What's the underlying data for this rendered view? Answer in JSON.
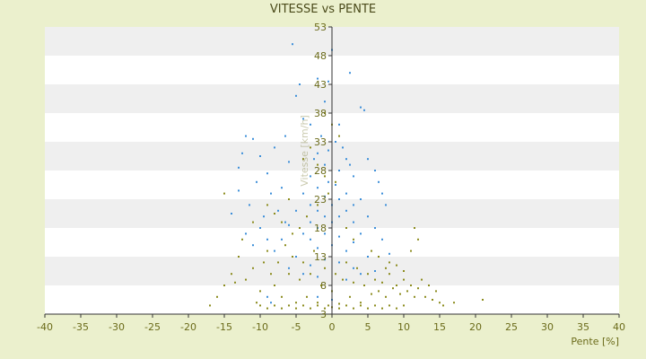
{
  "chart_data": {
    "type": "scatter",
    "title": "VITESSE vs PENTE",
    "xlabel": "Pente [%]",
    "ylabel": "Vitesse [km/h]",
    "xlim": [
      -40,
      40
    ],
    "ylim": [
      3,
      53
    ],
    "x_ticks": [
      -40,
      -35,
      -30,
      -25,
      -20,
      -15,
      -10,
      -5,
      0,
      5,
      10,
      15,
      20,
      25,
      30,
      35,
      40
    ],
    "y_ticks": [
      3,
      8,
      13,
      18,
      23,
      28,
      33,
      38,
      43,
      48,
      53
    ],
    "grid": "horizontal alternating bands",
    "colors": {
      "background": "#ebf0cd",
      "plot_light": "#ffffff",
      "plot_band": "#efefef",
      "axis_text": "#6b6b1a",
      "title": "#4a4a1a"
    },
    "series": [
      {
        "color": "#3d8fd9",
        "summary": "dense cloud centered near x=0, y=18–28, spanning x -13..8 and y 5..50",
        "points": [
          [
            -5.5,
            50
          ],
          [
            0,
            49
          ],
          [
            2.5,
            45
          ],
          [
            -2,
            44
          ],
          [
            -0.5,
            43.5
          ],
          [
            -4.5,
            43
          ],
          [
            -5,
            41
          ],
          [
            -1,
            40
          ],
          [
            4,
            39
          ],
          [
            4.5,
            38.5
          ],
          [
            -4,
            37
          ],
          [
            -3,
            36
          ],
          [
            1,
            36
          ],
          [
            -12,
            34
          ],
          [
            -11,
            33.5
          ],
          [
            -8,
            32
          ],
          [
            -12.5,
            31
          ],
          [
            -10,
            30.5
          ],
          [
            -6,
            29.5
          ],
          [
            -13,
            28.5
          ],
          [
            -9,
            27.5
          ],
          [
            -2,
            31
          ],
          [
            2,
            30
          ],
          [
            -1,
            29
          ],
          [
            1,
            28
          ],
          [
            -3,
            27
          ],
          [
            3,
            27
          ],
          [
            -0.5,
            26
          ],
          [
            0.5,
            25.5
          ],
          [
            -2,
            25
          ],
          [
            2,
            24
          ],
          [
            -4,
            24
          ],
          [
            4,
            23
          ],
          [
            -1,
            23.5
          ],
          [
            1,
            23
          ],
          [
            -3,
            22
          ],
          [
            3,
            22
          ],
          [
            0,
            22
          ],
          [
            -2,
            21
          ],
          [
            2,
            21
          ],
          [
            -5,
            21
          ],
          [
            5,
            20
          ],
          [
            -1,
            20
          ],
          [
            1,
            20
          ],
          [
            -3,
            19
          ],
          [
            3,
            19
          ],
          [
            0,
            19
          ],
          [
            -6,
            18.5
          ],
          [
            6,
            18
          ],
          [
            -2,
            18
          ],
          [
            2,
            18
          ],
          [
            -4,
            17
          ],
          [
            4,
            17
          ],
          [
            -1,
            17
          ],
          [
            1,
            16.5
          ],
          [
            -7,
            16
          ],
          [
            7,
            16
          ],
          [
            -3,
            16
          ],
          [
            3,
            15.5
          ],
          [
            0,
            15
          ],
          [
            -2,
            14.5
          ],
          [
            2,
            14
          ],
          [
            -8,
            14
          ],
          [
            8,
            13.5
          ],
          [
            -5,
            13
          ],
          [
            5,
            13
          ],
          [
            -1,
            12.5
          ],
          [
            1,
            12
          ],
          [
            -3,
            11.5
          ],
          [
            3,
            11
          ],
          [
            -6,
            11
          ],
          [
            6,
            10.5
          ],
          [
            -4,
            10
          ],
          [
            4,
            10
          ],
          [
            -2,
            9.5
          ],
          [
            2,
            9
          ],
          [
            -10,
            18
          ],
          [
            -9,
            16
          ],
          [
            -11,
            15
          ],
          [
            -12,
            17
          ],
          [
            -9.5,
            20
          ],
          [
            -11.5,
            22
          ],
          [
            -8.5,
            24
          ],
          [
            -10.5,
            26
          ],
          [
            -13,
            24.5
          ],
          [
            6.5,
            26
          ],
          [
            7,
            24
          ],
          [
            7.5,
            22
          ],
          [
            6,
            28
          ],
          [
            5,
            30
          ],
          [
            -14,
            20.5
          ],
          [
            -6.5,
            34
          ],
          [
            -7,
            25
          ],
          [
            -7.5,
            21
          ],
          [
            -6.5,
            19
          ],
          [
            -1.5,
            34
          ],
          [
            0.5,
            33
          ],
          [
            -0.5,
            31.5
          ],
          [
            1.5,
            32
          ],
          [
            -2.5,
            30
          ],
          [
            2.5,
            29
          ],
          [
            -9,
            6
          ],
          [
            -8.5,
            5
          ],
          [
            -2,
            6
          ],
          [
            0,
            5.5
          ]
        ]
      },
      {
        "color": "#8c8c1e",
        "summary": "broader cloud of low-speed points, x -17..21, y 3..38, densest near y 4–9",
        "points": [
          [
            -17,
            4.5
          ],
          [
            -16,
            6
          ],
          [
            -15,
            8
          ],
          [
            -14,
            10
          ],
          [
            -15,
            24
          ],
          [
            -13,
            13
          ],
          [
            -13.5,
            8.5
          ],
          [
            -12,
            9
          ],
          [
            -11,
            11
          ],
          [
            -10.5,
            5
          ],
          [
            -10,
            7
          ],
          [
            -9.5,
            12
          ],
          [
            -9,
            14
          ],
          [
            -8,
            8
          ],
          [
            -8.5,
            10
          ],
          [
            -7,
            6
          ],
          [
            -7.5,
            12
          ],
          [
            -6,
            10
          ],
          [
            -6.5,
            15
          ],
          [
            -5,
            5
          ],
          [
            -5.5,
            13
          ],
          [
            -4.5,
            9
          ],
          [
            -4,
            12
          ],
          [
            -3.5,
            6
          ],
          [
            -3,
            10
          ],
          [
            -2.5,
            14
          ],
          [
            -2,
            5
          ],
          [
            -1.5,
            8
          ],
          [
            -1,
            11
          ],
          [
            -0.5,
            4.5
          ],
          [
            0,
            7
          ],
          [
            0.5,
            10
          ],
          [
            1,
            4.8
          ],
          [
            1.5,
            9
          ],
          [
            2,
            12
          ],
          [
            2.5,
            6
          ],
          [
            3,
            8.5
          ],
          [
            3.5,
            11
          ],
          [
            4,
            5
          ],
          [
            4.5,
            8
          ],
          [
            5,
            10
          ],
          [
            5.5,
            6.5
          ],
          [
            6,
            9
          ],
          [
            6.5,
            7
          ],
          [
            7,
            8.5
          ],
          [
            7.5,
            6
          ],
          [
            8,
            10
          ],
          [
            8.5,
            7.5
          ],
          [
            9,
            8
          ],
          [
            9.5,
            6.5
          ],
          [
            10,
            9
          ],
          [
            10.5,
            7
          ],
          [
            11,
            8
          ],
          [
            11.5,
            6
          ],
          [
            12,
            7.5
          ],
          [
            12.5,
            9
          ],
          [
            13,
            6
          ],
          [
            13.5,
            8
          ],
          [
            14,
            5.5
          ],
          [
            14.5,
            7
          ],
          [
            15,
            5
          ],
          [
            15.5,
            4.5
          ],
          [
            17,
            5
          ],
          [
            21,
            5.5
          ],
          [
            11.5,
            18
          ],
          [
            12,
            16
          ],
          [
            11,
            14
          ],
          [
            -1,
            38
          ],
          [
            0,
            36
          ],
          [
            1,
            34
          ],
          [
            -3,
            32
          ],
          [
            -4,
            30
          ],
          [
            -2,
            29
          ],
          [
            -1,
            27
          ],
          [
            0.5,
            26
          ],
          [
            -0.5,
            24
          ],
          [
            -2,
            22
          ],
          [
            -3.5,
            20
          ],
          [
            -4.5,
            18
          ],
          [
            -5.5,
            17
          ],
          [
            -7,
            19
          ],
          [
            -8,
            20.5
          ],
          [
            -9,
            22
          ],
          [
            -6,
            23
          ],
          [
            -11,
            19
          ],
          [
            -12.5,
            16
          ],
          [
            -10,
            4.5
          ],
          [
            -9,
            4
          ],
          [
            -8,
            4.5
          ],
          [
            -7,
            4
          ],
          [
            -6,
            4.5
          ],
          [
            -5,
            4
          ],
          [
            -4,
            4.5
          ],
          [
            -3,
            4
          ],
          [
            -2,
            4.5
          ],
          [
            -1,
            4
          ],
          [
            0,
            4.2
          ],
          [
            1,
            4
          ],
          [
            2,
            4.5
          ],
          [
            3,
            4
          ],
          [
            4,
            4.5
          ],
          [
            5,
            4
          ],
          [
            6,
            4.5
          ],
          [
            7,
            4
          ],
          [
            8,
            4.5
          ],
          [
            9,
            4
          ],
          [
            10,
            4.5
          ],
          [
            7.5,
            11
          ],
          [
            8,
            12
          ],
          [
            6.5,
            13
          ],
          [
            5.5,
            14
          ],
          [
            9,
            11.5
          ],
          [
            10,
            10.5
          ],
          [
            3,
            16
          ],
          [
            2,
            18
          ]
        ]
      }
    ]
  }
}
